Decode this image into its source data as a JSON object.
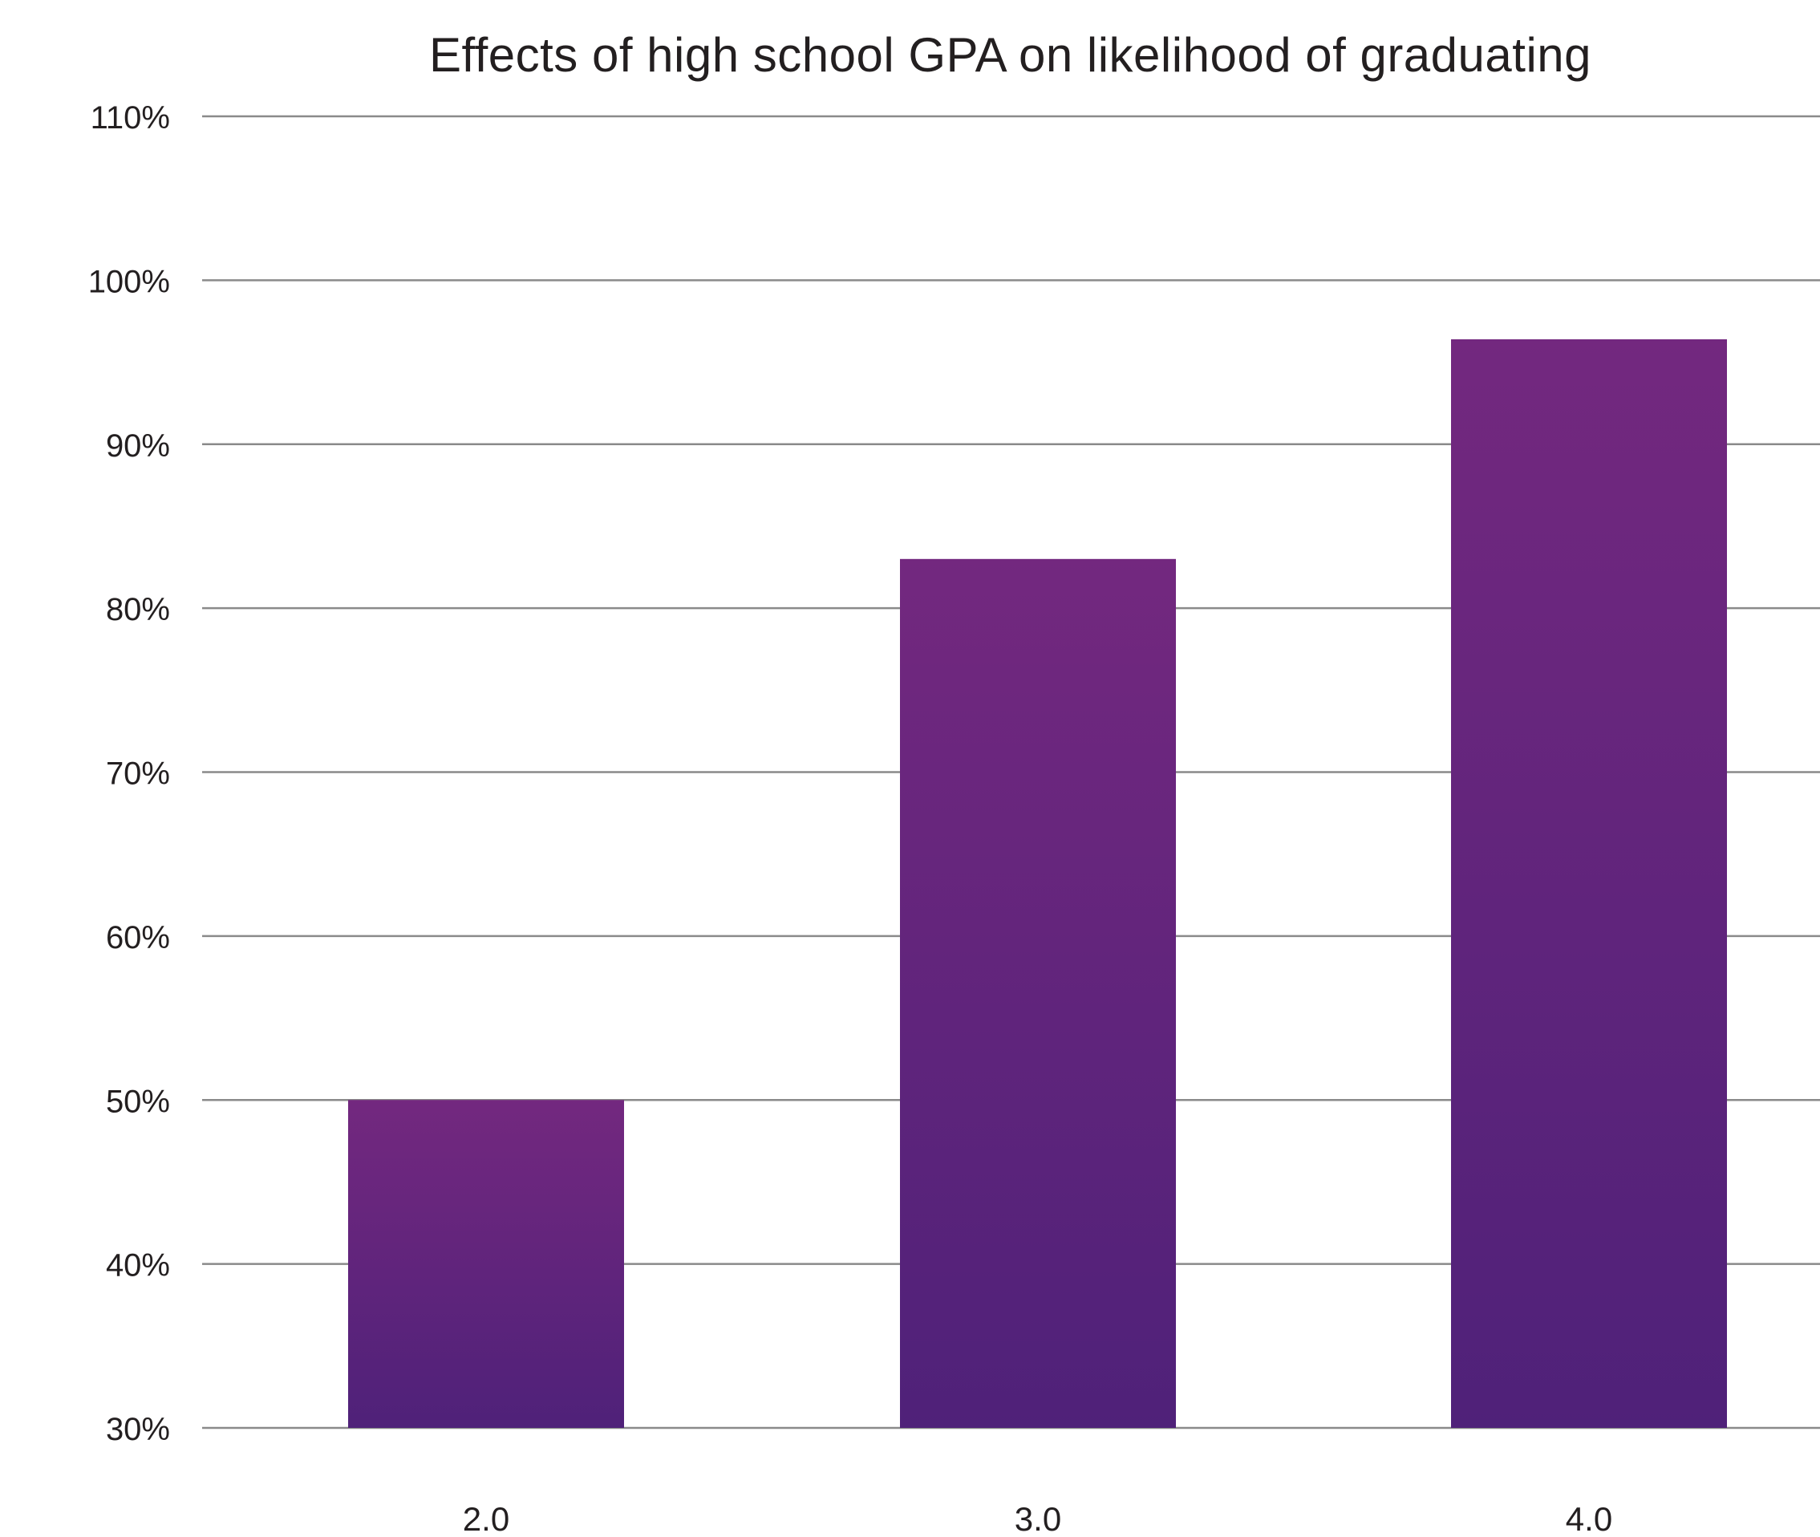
{
  "chart_data": {
    "type": "bar",
    "title": "Effects of high school GPA on likelihood of graduating",
    "xlabel": "",
    "ylabel": "",
    "categories": [
      "2.0",
      "3.0",
      "4.0"
    ],
    "values": [
      50,
      83,
      96.4
    ],
    "ylim": [
      30,
      110
    ],
    "yticks": [
      30,
      40,
      50,
      60,
      70,
      80,
      90,
      100,
      110
    ],
    "ytick_labels": [
      "30%",
      "40%",
      "50%",
      "60%",
      "70%",
      "80%",
      "90%",
      "100%",
      "110%"
    ],
    "grid": true,
    "legend": "none",
    "colors": {
      "bar_top": "#73287f",
      "bar_bottom": "#4f2179",
      "grid": "#8a8a8a",
      "text": "#231f20"
    }
  }
}
